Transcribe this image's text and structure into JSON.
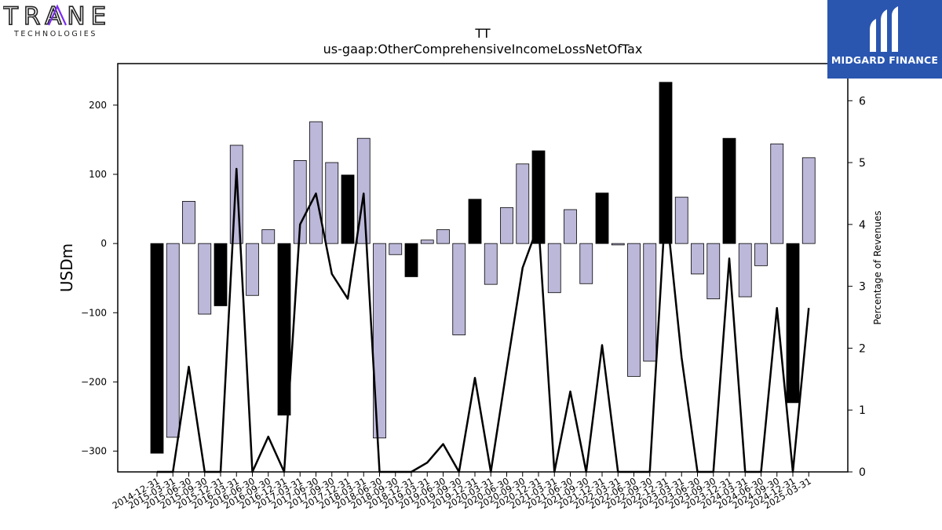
{
  "brand": {
    "company_logo_text": "TRANE",
    "company_logo_sub": "TECHNOLOGIES",
    "publisher_logo_text": "MIDGARD FINANCE"
  },
  "chart_data": {
    "type": "bar",
    "title": "TT",
    "subtitle": "us-gaap:OtherComprehensiveIncomeLossNetOfTax",
    "ylabel": "USDm",
    "y2label": "Percentage of Revenues",
    "ylim": [
      -330,
      260
    ],
    "y2lim": [
      0,
      6.6
    ],
    "yticks": [
      -300,
      -200,
      -100,
      0,
      100,
      200
    ],
    "y2ticks": [
      0,
      1,
      2,
      3,
      4,
      5,
      6
    ],
    "categories": [
      "2014-12-31",
      "2015-03-31",
      "2015-06-30",
      "2015-09-30",
      "2015-12-31",
      "2016-03-31",
      "2016-06-30",
      "2016-09-30",
      "2016-12-31",
      "2017-03-31",
      "2017-06-30",
      "2017-09-30",
      "2017-12-31",
      "2018-03-31",
      "2018-06-30",
      "2018-09-30",
      "2018-12-31",
      "2019-03-31",
      "2019-06-30",
      "2019-09-30",
      "2019-12-31",
      "2020-03-31",
      "2020-06-30",
      "2020-09-30",
      "2020-12-31",
      "2021-03-31",
      "2021-06-30",
      "2021-09-30",
      "2021-12-31",
      "2022-03-31",
      "2022-06-30",
      "2022-09-30",
      "2022-12-31",
      "2023-03-31",
      "2023-06-30",
      "2023-09-30",
      "2023-12-31",
      "2024-03-31",
      "2024-06-30",
      "2024-09-30",
      "2024-12-31",
      "2025-03-31"
    ],
    "values": [
      -303,
      -280,
      61,
      -102,
      -90,
      142,
      -75,
      20,
      -248,
      120,
      176,
      117,
      99,
      152,
      -281,
      -16,
      -48,
      5,
      20,
      -132,
      64,
      -59,
      52,
      115,
      134,
      -71,
      49,
      -58,
      73,
      -2,
      -192,
      -170,
      233,
      67,
      -44,
      -80,
      152,
      -77,
      -32,
      144,
      -230,
      124
    ],
    "annual": [
      true,
      false,
      false,
      false,
      true,
      false,
      false,
      false,
      true,
      false,
      false,
      false,
      true,
      false,
      false,
      false,
      true,
      false,
      false,
      false,
      true,
      false,
      false,
      false,
      true,
      false,
      false,
      false,
      true,
      false,
      false,
      false,
      true,
      false,
      false,
      false,
      true,
      false,
      false,
      false,
      true,
      false
    ],
    "pct_of_revenue": [
      0,
      0,
      1.7,
      0,
      0,
      4.9,
      0,
      0.57,
      0,
      4.0,
      4.5,
      3.2,
      2.8,
      4.5,
      0,
      0,
      0,
      0.15,
      0.45,
      0,
      1.52,
      0,
      1.67,
      3.3,
      4.0,
      0,
      1.3,
      0,
      2.05,
      0,
      0,
      0,
      4.35,
      1.85,
      0,
      0,
      3.45,
      0,
      0,
      2.65,
      0,
      2.65
    ],
    "colors": {
      "annual_bar": "#000000",
      "quarter_bar": "#bcb8d9",
      "line": "#000000"
    },
    "grid": false,
    "legend": "none"
  }
}
